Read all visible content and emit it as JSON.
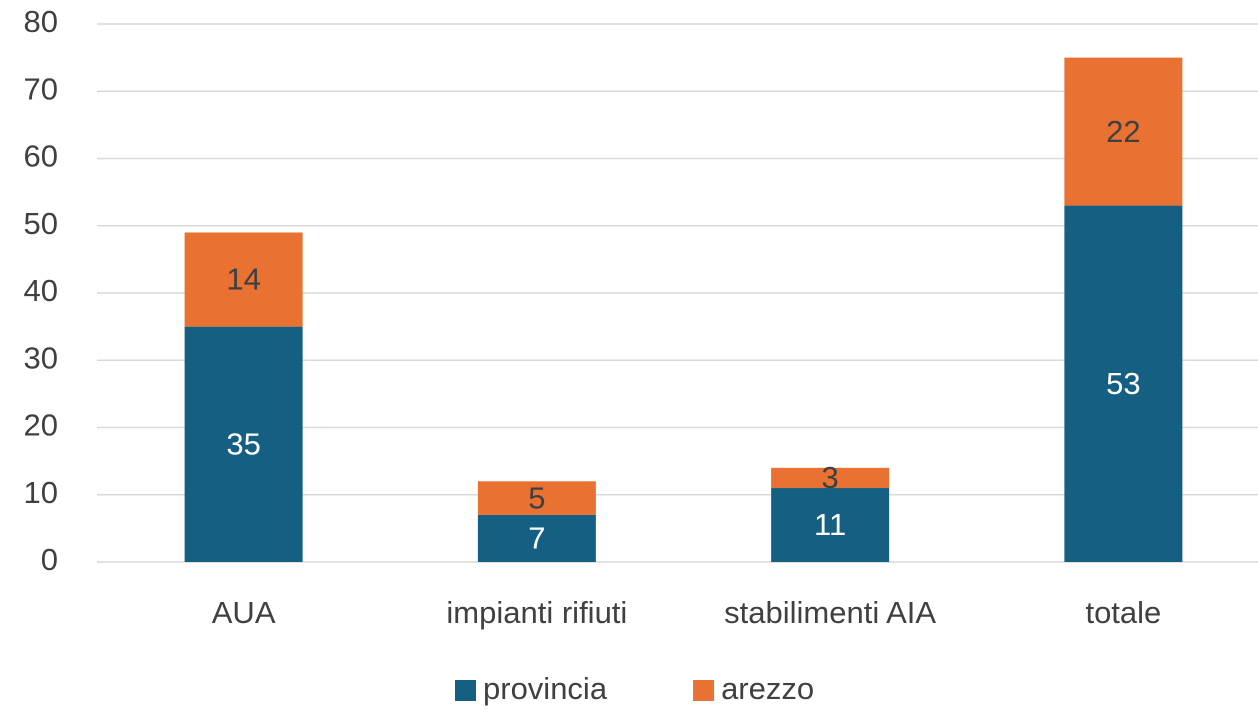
{
  "chart_data": {
    "type": "stacked_bar",
    "categories": [
      "AUA",
      "impianti rifiuti",
      "stabilimenti AIA",
      "totale"
    ],
    "series": [
      {
        "name": "provincia",
        "color": "#156082",
        "values": [
          35,
          7,
          11,
          53
        ]
      },
      {
        "name": "arezzo",
        "color": "#e97132",
        "values": [
          14,
          5,
          3,
          22
        ]
      }
    ],
    "ylim": [
      0,
      80
    ],
    "yticks": [
      0,
      10,
      20,
      30,
      40,
      50,
      60,
      70,
      80
    ],
    "grid": true,
    "legend": "bottom"
  }
}
